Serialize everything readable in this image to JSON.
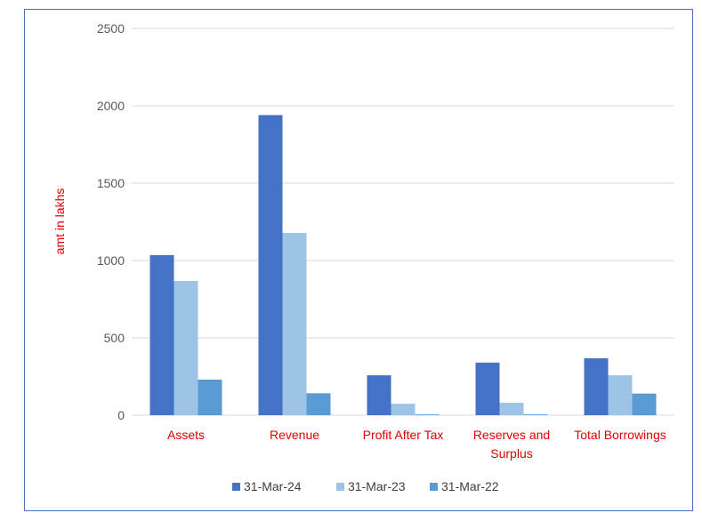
{
  "chart_data": {
    "type": "bar",
    "title": "",
    "xlabel": "",
    "ylabel": "amt in lakhs",
    "categories": [
      [
        "Assets"
      ],
      [
        "Revenue"
      ],
      [
        "Profit After Tax"
      ],
      [
        "Reserves and",
        "Surplus"
      ],
      [
        "Total Borrowings"
      ]
    ],
    "series": [
      {
        "name": "31-Mar-24",
        "color": "#4472c4",
        "values": [
          1035,
          1940,
          258,
          340,
          368
        ]
      },
      {
        "name": "31-Mar-23",
        "color": "#9dc3e6",
        "values": [
          868,
          1178,
          74,
          80,
          258
        ]
      },
      {
        "name": "31-Mar-22",
        "color": "#5b9bd5",
        "values": [
          230,
          142,
          5,
          5,
          140
        ]
      }
    ],
    "ylim": [
      0,
      2500
    ],
    "yticks": [
      0,
      500,
      1000,
      1500,
      2000,
      2500
    ],
    "grid": true,
    "legend_position": "bottom"
  }
}
